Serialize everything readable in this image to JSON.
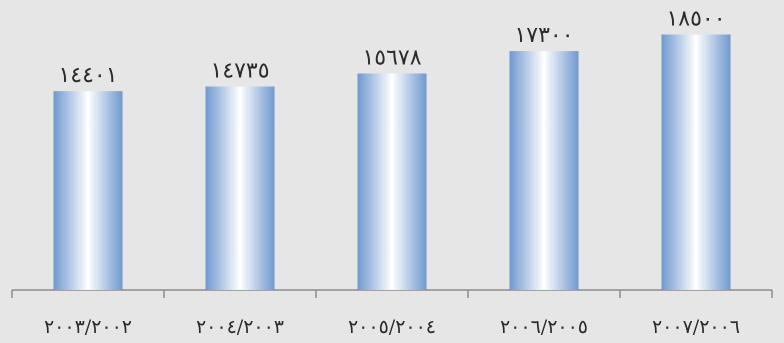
{
  "chart_data": {
    "type": "bar",
    "categories": [
      "٢٠٠٣/٢٠٠٢",
      "٢٠٠٤/٢٠٠٣",
      "٢٠٠٥/٢٠٠٤",
      "٢٠٠٦/٢٠٠٥",
      "٢٠٠٧/٢٠٠٦"
    ],
    "values": [
      14401,
      14735,
      15678,
      17300,
      18500
    ],
    "value_labels": [
      "١٤٤٠١",
      "١٤٧٣٥",
      "١٥٦٧٨",
      "١٧٣٠٠",
      "١٨٥٠٠"
    ],
    "ylim": [
      0,
      21000
    ],
    "grid": false,
    "legend": "none",
    "colors": {
      "background": "#e6e6e7",
      "bar_edge": "#6f98cf",
      "bar_mid": "#ffffff",
      "axis": "#8c8c8c",
      "text": "#2b2b2b"
    }
  }
}
